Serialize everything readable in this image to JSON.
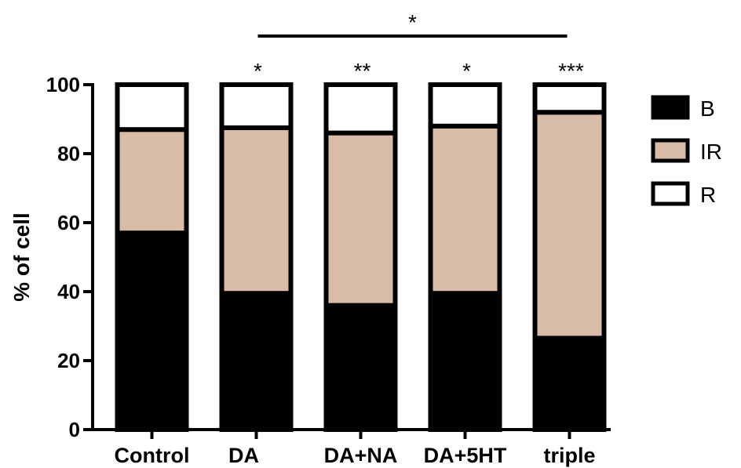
{
  "chart_data": {
    "type": "bar",
    "stacked": true,
    "categories": [
      "Control",
      "DA",
      "DA+NA",
      "DA+5HT",
      "triple"
    ],
    "series": [
      {
        "name": "B",
        "color": "#000000",
        "values": [
          57,
          39.5,
          36,
          39.5,
          26.5
        ]
      },
      {
        "name": "IR",
        "color": "#d8bca8",
        "values": [
          30,
          48,
          50,
          48.5,
          65.5
        ]
      },
      {
        "name": "R",
        "color": "#ffffff",
        "values": [
          13,
          12.5,
          14,
          12,
          8
        ]
      }
    ],
    "ylabel": "% of cell",
    "ylim": [
      0,
      100
    ],
    "yticks": [
      "0",
      "20",
      "40",
      "60",
      "80",
      "100"
    ],
    "significance": [
      "",
      "*",
      "**",
      "*",
      "***"
    ],
    "bracket": {
      "from": "DA",
      "to": "triple",
      "label": "*"
    },
    "legend_position": "right"
  }
}
